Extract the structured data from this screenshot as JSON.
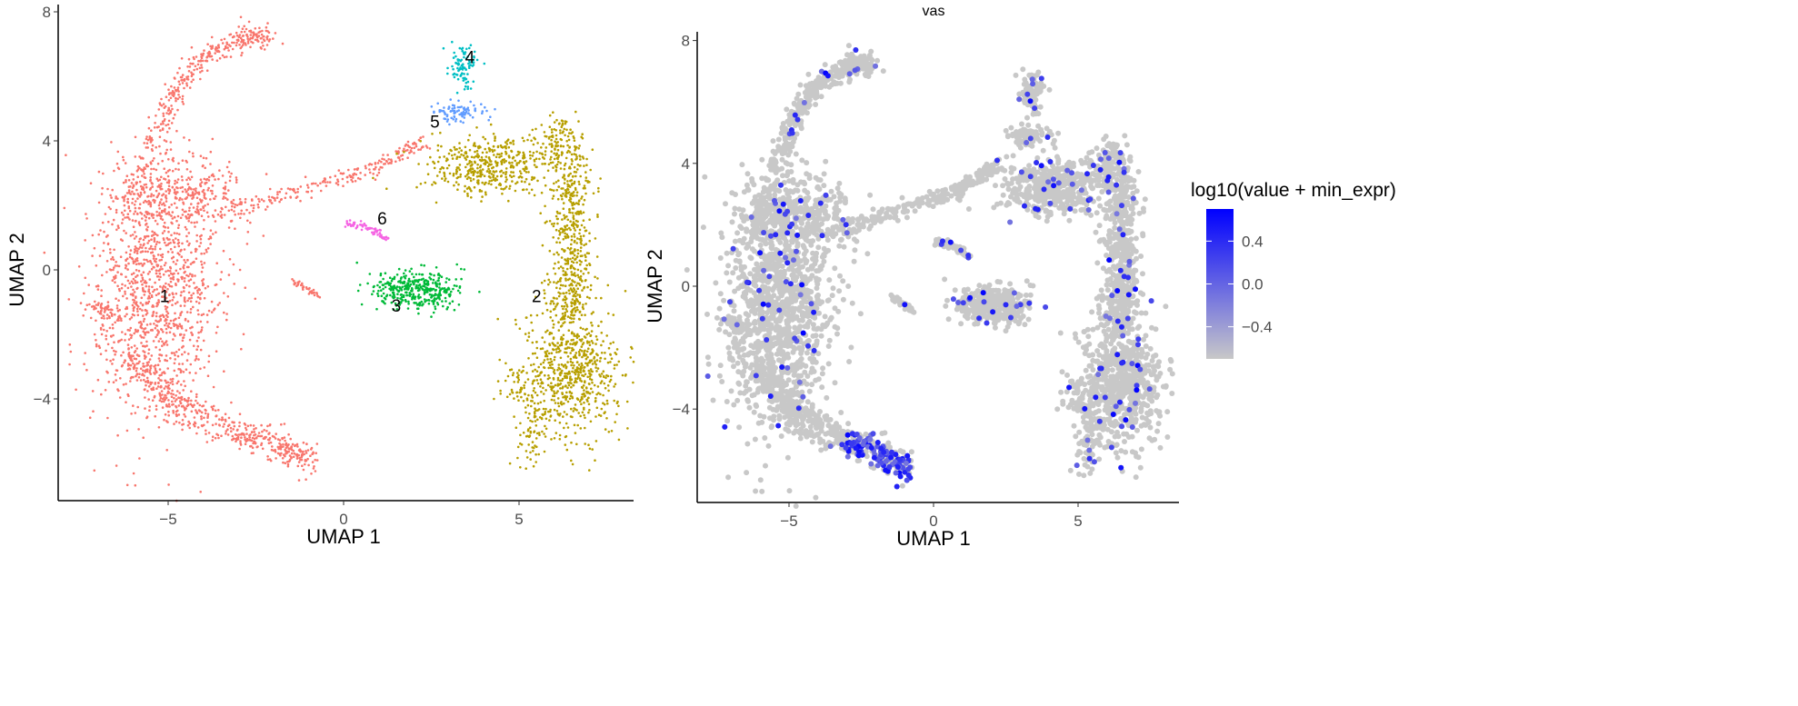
{
  "chart_data": [
    {
      "type": "scatter",
      "title": "",
      "xlabel": "UMAP 1",
      "ylabel": "UMAP 2",
      "xlim": [
        -8.1,
        8.3
      ],
      "ylim": [
        -7.15,
        8.2
      ],
      "xticks": [
        -5,
        0,
        5
      ],
      "yticks": [
        -4,
        0,
        4,
        8
      ],
      "grid": false,
      "legend": "none",
      "clusters": [
        {
          "label": "1",
          "color": "#F8766D",
          "label_pos": [
            -5.1,
            -0.8
          ]
        },
        {
          "label": "2",
          "color": "#B79F00",
          "label_pos": [
            5.5,
            -0.8
          ]
        },
        {
          "label": "3",
          "color": "#00BA38",
          "label_pos": [
            1.5,
            -1.1
          ]
        },
        {
          "label": "4",
          "color": "#00BFC4",
          "label_pos": [
            3.6,
            6.6
          ]
        },
        {
          "label": "5",
          "color": "#619CFF",
          "label_pos": [
            2.6,
            4.6
          ]
        },
        {
          "label": "6",
          "color": "#F564E3",
          "label_pos": [
            1.1,
            1.6
          ]
        }
      ]
    },
    {
      "type": "scatter",
      "title": "vas",
      "xlabel": "UMAP 1",
      "ylabel": "UMAP 2",
      "xlim": [
        -8.3,
        8.5
      ],
      "ylim": [
        -7.1,
        8.0
      ],
      "xticks": [
        -5,
        0,
        5
      ],
      "yticks": [
        -4,
        0,
        4,
        8
      ],
      "grid": false,
      "legend": "right",
      "colorbar": {
        "title": "log10(value + min_expr)",
        "low_color": "#C8C8C8",
        "high_color": "#0000FF",
        "range": [
          -0.7,
          0.7
        ],
        "ticks": [
          -0.4,
          0.0,
          0.4
        ],
        "tick_labels": [
          "−0.4",
          "0.0",
          "0.4"
        ]
      }
    }
  ],
  "tick_labels": {
    "x": [
      "−5",
      "0",
      "5"
    ],
    "y": [
      "−4",
      "0",
      "4",
      "8"
    ]
  }
}
